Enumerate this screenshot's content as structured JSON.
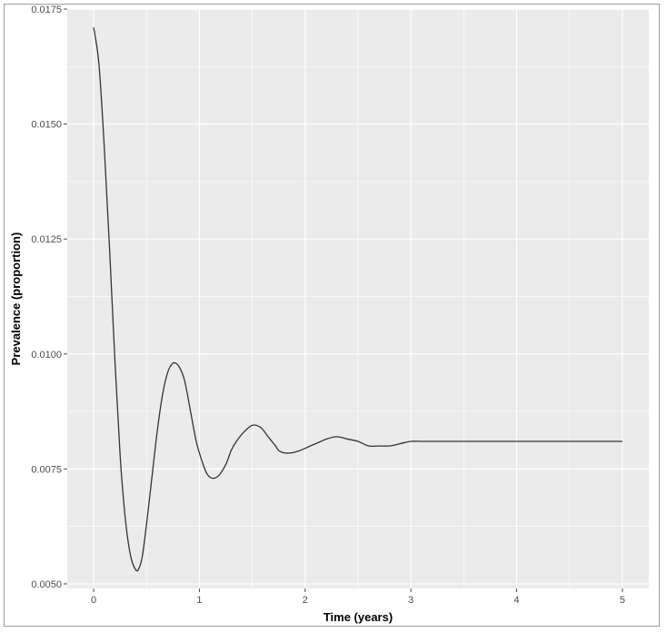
{
  "chart_data": {
    "type": "line",
    "title": "",
    "xlabel": "Time (years)",
    "ylabel": "Prevalence (proportion)",
    "xlim": [
      -0.25,
      5.25
    ],
    "ylim": [
      0.0049,
      0.0175
    ],
    "x_ticks": [
      0,
      1,
      2,
      3,
      4,
      5
    ],
    "x_tick_labels": [
      "0",
      "1",
      "2",
      "3",
      "4",
      "5"
    ],
    "y_ticks": [
      0.005,
      0.0075,
      0.01,
      0.0125,
      0.015,
      0.0175
    ],
    "y_tick_labels": [
      "0.0050",
      "0.0075",
      "0.0100",
      "0.0125",
      "0.0150",
      "0.0175"
    ],
    "grid": true,
    "legend": "none",
    "colors": {
      "panel": "#ebebeb",
      "grid": "#ffffff",
      "line": "#333333"
    },
    "series": [
      {
        "x": [
          0,
          0.05,
          0.1,
          0.15,
          0.2,
          0.25,
          0.3,
          0.35,
          0.4,
          0.43,
          0.46,
          0.5,
          0.55,
          0.6,
          0.65,
          0.7,
          0.75,
          0.8,
          0.85,
          0.88,
          0.92,
          0.97,
          1.02,
          1.07,
          1.12,
          1.18,
          1.25,
          1.3,
          1.35,
          1.42,
          1.5,
          1.58,
          1.65,
          1.72,
          1.75,
          1.8,
          1.87,
          1.95,
          2.05,
          2.15,
          2.2,
          2.3,
          2.4,
          2.5,
          2.6,
          2.7,
          2.8,
          2.9,
          3.0,
          3.1,
          3.2,
          3.3,
          3.4,
          3.5,
          3.6,
          3.8,
          4.0,
          4.2,
          4.4,
          4.6,
          4.8,
          5.0
        ],
        "y": [
          0.0171,
          0.0163,
          0.0145,
          0.0123,
          0.0099,
          0.0078,
          0.0064,
          0.0056,
          0.0053,
          0.00535,
          0.0056,
          0.0063,
          0.0073,
          0.0083,
          0.0091,
          0.0096,
          0.0098,
          0.00975,
          0.0095,
          0.0092,
          0.0087,
          0.0081,
          0.0077,
          0.0074,
          0.0073,
          0.00735,
          0.0076,
          0.0079,
          0.0081,
          0.0083,
          0.00845,
          0.0084,
          0.0082,
          0.008,
          0.0079,
          0.00785,
          0.00785,
          0.0079,
          0.008,
          0.0081,
          0.00815,
          0.0082,
          0.00815,
          0.0081,
          0.008,
          0.008,
          0.008,
          0.00805,
          0.0081,
          0.0081,
          0.0081,
          0.0081,
          0.0081,
          0.0081,
          0.0081,
          0.0081,
          0.0081,
          0.0081,
          0.0081,
          0.0081,
          0.0081,
          0.0081
        ]
      }
    ]
  }
}
